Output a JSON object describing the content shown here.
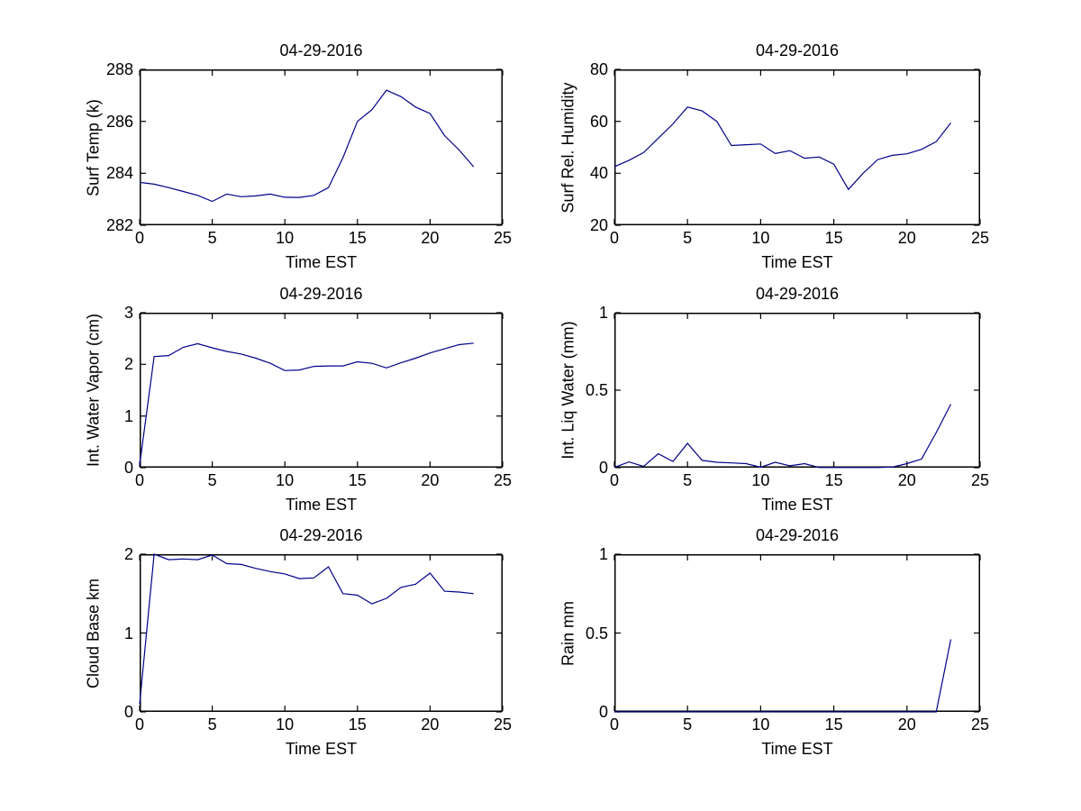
{
  "figure": {
    "background": "#ffffff",
    "axis_color": "#000000",
    "line_color": "#00008b"
  },
  "chart_data": [
    {
      "type": "line",
      "title": "04-29-2016",
      "xlabel": "Time EST",
      "ylabel": "Surf Temp (k)",
      "grid": false,
      "xlim": [
        0,
        25
      ],
      "ylim": [
        282,
        288
      ],
      "xticks": [
        "0",
        "5",
        "10",
        "15",
        "20",
        "25"
      ],
      "yticks": [
        "282",
        "284",
        "286",
        "288"
      ],
      "x": [
        0,
        1,
        2,
        3,
        4,
        5,
        6,
        7,
        8,
        9,
        10,
        11,
        12,
        13,
        14,
        15,
        16,
        17,
        18,
        19,
        20,
        21,
        22,
        23
      ],
      "values": [
        283.65,
        283.58,
        283.45,
        283.3,
        283.15,
        282.92,
        283.2,
        283.1,
        283.13,
        283.2,
        283.08,
        283.07,
        283.15,
        283.45,
        284.6,
        286.0,
        286.45,
        287.2,
        286.95,
        286.55,
        286.3,
        285.45,
        284.9,
        284.25
      ]
    },
    {
      "type": "line",
      "title": "04-29-2016",
      "xlabel": "Time EST",
      "ylabel": "Surf Rel. Humidity",
      "grid": false,
      "xlim": [
        0,
        25
      ],
      "ylim": [
        20,
        80
      ],
      "xticks": [
        "0",
        "5",
        "10",
        "15",
        "20",
        "25"
      ],
      "yticks": [
        "20",
        "40",
        "60",
        "80"
      ],
      "x": [
        0,
        1,
        2,
        3,
        4,
        5,
        6,
        7,
        8,
        9,
        10,
        11,
        12,
        13,
        14,
        15,
        16,
        17,
        18,
        19,
        20,
        21,
        22,
        23
      ],
      "values": [
        42.5,
        45,
        48,
        53.5,
        59,
        65.5,
        64,
        60,
        50.7,
        51,
        51.3,
        47.6,
        48.7,
        45.8,
        46.3,
        43.5,
        33.8,
        40,
        45.3,
        46.9,
        47.5,
        49.2,
        52.2,
        59.4
      ]
    },
    {
      "type": "line",
      "title": "04-29-2016",
      "xlabel": "Time EST",
      "ylabel": "Int. Water Vapor (cm)",
      "grid": false,
      "xlim": [
        0,
        25
      ],
      "ylim": [
        0,
        3
      ],
      "xticks": [
        "0",
        "5",
        "10",
        "15",
        "20",
        "25"
      ],
      "yticks": [
        "0",
        "1",
        "2",
        "3"
      ],
      "x": [
        0,
        1,
        2,
        3,
        4,
        5,
        6,
        7,
        8,
        9,
        10,
        11,
        12,
        13,
        14,
        15,
        16,
        17,
        18,
        19,
        20,
        21,
        22,
        23
      ],
      "values": [
        0.05,
        2.15,
        2.17,
        2.33,
        2.4,
        2.32,
        2.25,
        2.2,
        2.12,
        2.02,
        1.88,
        1.89,
        1.96,
        1.97,
        1.97,
        2.05,
        2.02,
        1.93,
        2.03,
        2.12,
        2.22,
        2.3,
        2.38,
        2.41
      ]
    },
    {
      "type": "line",
      "title": "04-29-2016",
      "xlabel": "Time EST",
      "ylabel": "Int. Liq Water (mm)",
      "grid": false,
      "xlim": [
        0,
        25
      ],
      "ylim": [
        0,
        1
      ],
      "xticks": [
        "0",
        "5",
        "10",
        "15",
        "20",
        "25"
      ],
      "yticks": [
        "0",
        "0.5",
        "1"
      ],
      "x": [
        0,
        1,
        2,
        3,
        4,
        5,
        6,
        7,
        8,
        9,
        10,
        11,
        12,
        13,
        14,
        15,
        16,
        17,
        18,
        19,
        20,
        21,
        22,
        23
      ],
      "values": [
        0.002,
        0.037,
        0.008,
        0.09,
        0.04,
        0.157,
        0.047,
        0.035,
        0.031,
        0.026,
        0.003,
        0.035,
        0.012,
        0.026,
        0.001,
        0.001,
        0.001,
        0.001,
        0.001,
        0.004,
        0.026,
        0.056,
        0.227,
        0.41
      ]
    },
    {
      "type": "line",
      "title": "04-29-2016",
      "xlabel": "Time EST",
      "ylabel": "Cloud Base km",
      "grid": false,
      "xlim": [
        0,
        25
      ],
      "ylim": [
        0,
        2
      ],
      "xticks": [
        "0",
        "5",
        "10",
        "15",
        "20",
        "25"
      ],
      "yticks": [
        "0",
        "1",
        "2"
      ],
      "x": [
        0,
        1,
        2,
        3,
        4,
        5,
        6,
        7,
        8,
        9,
        10,
        11,
        12,
        13,
        14,
        15,
        16,
        17,
        18,
        19,
        20,
        21,
        22,
        23
      ],
      "values": [
        0.1,
        2.0,
        1.93,
        1.94,
        1.93,
        1.99,
        1.88,
        1.87,
        1.82,
        1.78,
        1.75,
        1.69,
        1.7,
        1.84,
        1.5,
        1.48,
        1.37,
        1.44,
        1.58,
        1.62,
        1.76,
        1.53,
        1.52,
        1.5
      ]
    },
    {
      "type": "line",
      "title": "04-29-2016",
      "xlabel": "Time EST",
      "ylabel": "Rain mm",
      "grid": false,
      "xlim": [
        0,
        25
      ],
      "ylim": [
        0,
        1
      ],
      "xticks": [
        "0",
        "5",
        "10",
        "15",
        "20",
        "25"
      ],
      "yticks": [
        "0",
        "0.5",
        "1"
      ],
      "x": [
        0,
        1,
        2,
        3,
        4,
        5,
        6,
        7,
        8,
        9,
        10,
        11,
        12,
        13,
        14,
        15,
        16,
        17,
        18,
        19,
        20,
        21,
        22,
        23
      ],
      "values": [
        0,
        0,
        0,
        0,
        0,
        0,
        0,
        0,
        0,
        0,
        0,
        0,
        0,
        0,
        0,
        0,
        0,
        0,
        0,
        0,
        0,
        0,
        0,
        0.46
      ]
    }
  ]
}
